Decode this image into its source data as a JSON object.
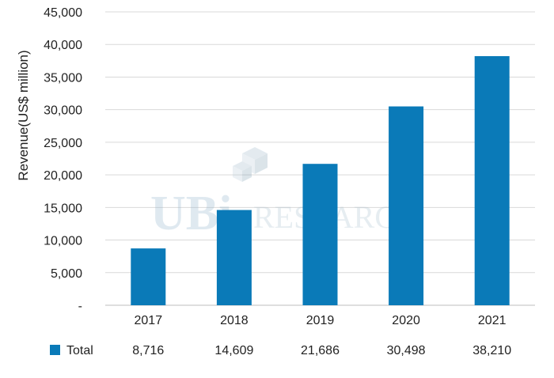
{
  "watermark": {
    "main": "UBi",
    "sub": "RESEARCH"
  },
  "chart_data": {
    "type": "bar",
    "title": "",
    "xlabel": "",
    "ylabel": "Revenue(US$ million)",
    "categories": [
      "2017",
      "2018",
      "2019",
      "2020",
      "2021"
    ],
    "series": [
      {
        "name": "Total",
        "values": [
          8716,
          14609,
          21686,
          30498,
          38210
        ],
        "color": "#0a7ab8"
      }
    ],
    "data_labels": [
      "8,716",
      "14,609",
      "21,686",
      "30,498",
      "38,210"
    ],
    "ylim": [
      0,
      45000
    ],
    "yticks": [
      "-",
      "5,000",
      "10,000",
      "15,000",
      "20,000",
      "25,000",
      "30,000",
      "35,000",
      "40,000",
      "45,000"
    ],
    "grid": true,
    "legend": "data-table-bottom"
  }
}
